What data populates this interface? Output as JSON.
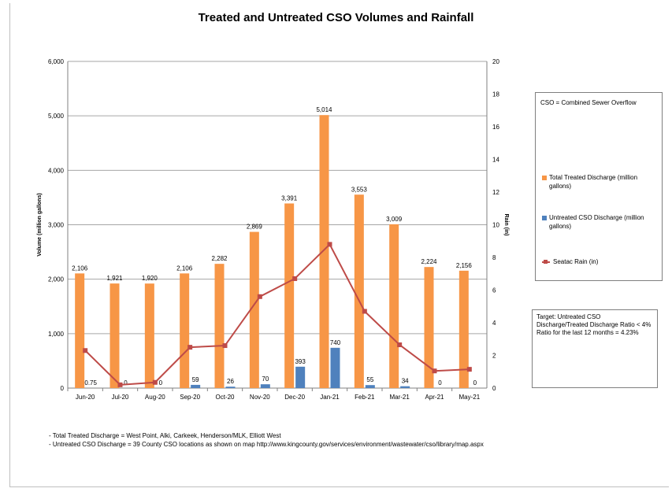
{
  "chart_data": {
    "type": "bar",
    "title": "Treated and Untreated CSO Volumes and Rainfall",
    "categories": [
      "Jun-20",
      "Jul-20",
      "Aug-20",
      "Sep-20",
      "Oct-20",
      "Nov-20",
      "Dec-20",
      "Jan-21",
      "Feb-21",
      "Mar-21",
      "Apr-21",
      "May-21"
    ],
    "series": [
      {
        "name": "Total Treated Discharge (million gallons)",
        "type": "bar",
        "axis": "left",
        "color": "#f79646",
        "values": [
          2106,
          1921,
          1920,
          2106,
          2282,
          2869,
          3391,
          5014,
          3553,
          3009,
          2224,
          2156
        ],
        "labels": [
          "2,106",
          "1,921",
          "1,920",
          "2,106",
          "2,282",
          "2,869",
          "3,391",
          "5,014",
          "3,553",
          "3,009",
          "2,224",
          "2,156"
        ]
      },
      {
        "name": "Untreated CSO Discharge (million gallons)",
        "type": "bar",
        "axis": "left",
        "color": "#4f81bd",
        "values": [
          0.75,
          0,
          0,
          59,
          26,
          70,
          393,
          740,
          55,
          34,
          0,
          0
        ],
        "labels": [
          "0.75",
          "0",
          "0",
          "59",
          "26",
          "70",
          "393",
          "740",
          "55",
          "34",
          "0",
          "0"
        ]
      },
      {
        "name": "Seatac Rain (in)",
        "type": "line",
        "axis": "right",
        "color": "#be4b48",
        "values": [
          2.3,
          0.2,
          0.35,
          2.5,
          2.6,
          5.6,
          6.7,
          8.8,
          4.7,
          2.65,
          1.05,
          1.15
        ]
      }
    ],
    "ylabel": "Volume (million gallons)",
    "ylabel_right": "Rain (in)",
    "ylim": [
      0,
      6000
    ],
    "ylim_right": [
      0,
      20
    ],
    "yticks": [
      0,
      1000,
      2000,
      3000,
      4000,
      5000,
      6000
    ],
    "ytick_labels": [
      "0",
      "1,000",
      "2,000",
      "3,000",
      "4,000",
      "5,000",
      "6,000"
    ],
    "yticks_right": [
      0,
      2,
      4,
      6,
      8,
      10,
      12,
      14,
      16,
      18,
      20
    ],
    "grid": true,
    "legend_position": "right"
  },
  "legend_note": "CSO = Combined Sewer Overflow",
  "target_text": "Target: Untreated CSO Discharge/Treated Discharge Ratio < 4%",
  "ratio_text": "Ratio for the last 12 months = 4.23%",
  "notes": [
    "- Total Treated Discharge = West Point, Alki, Carkeek, Henderson/MLK, Elliott West",
    "- Untreated CSO Discharge = 39  County CSO locations as shown on map http://www.kingcounty.gov/services/environment/wastewater/cso/library/map.aspx"
  ]
}
